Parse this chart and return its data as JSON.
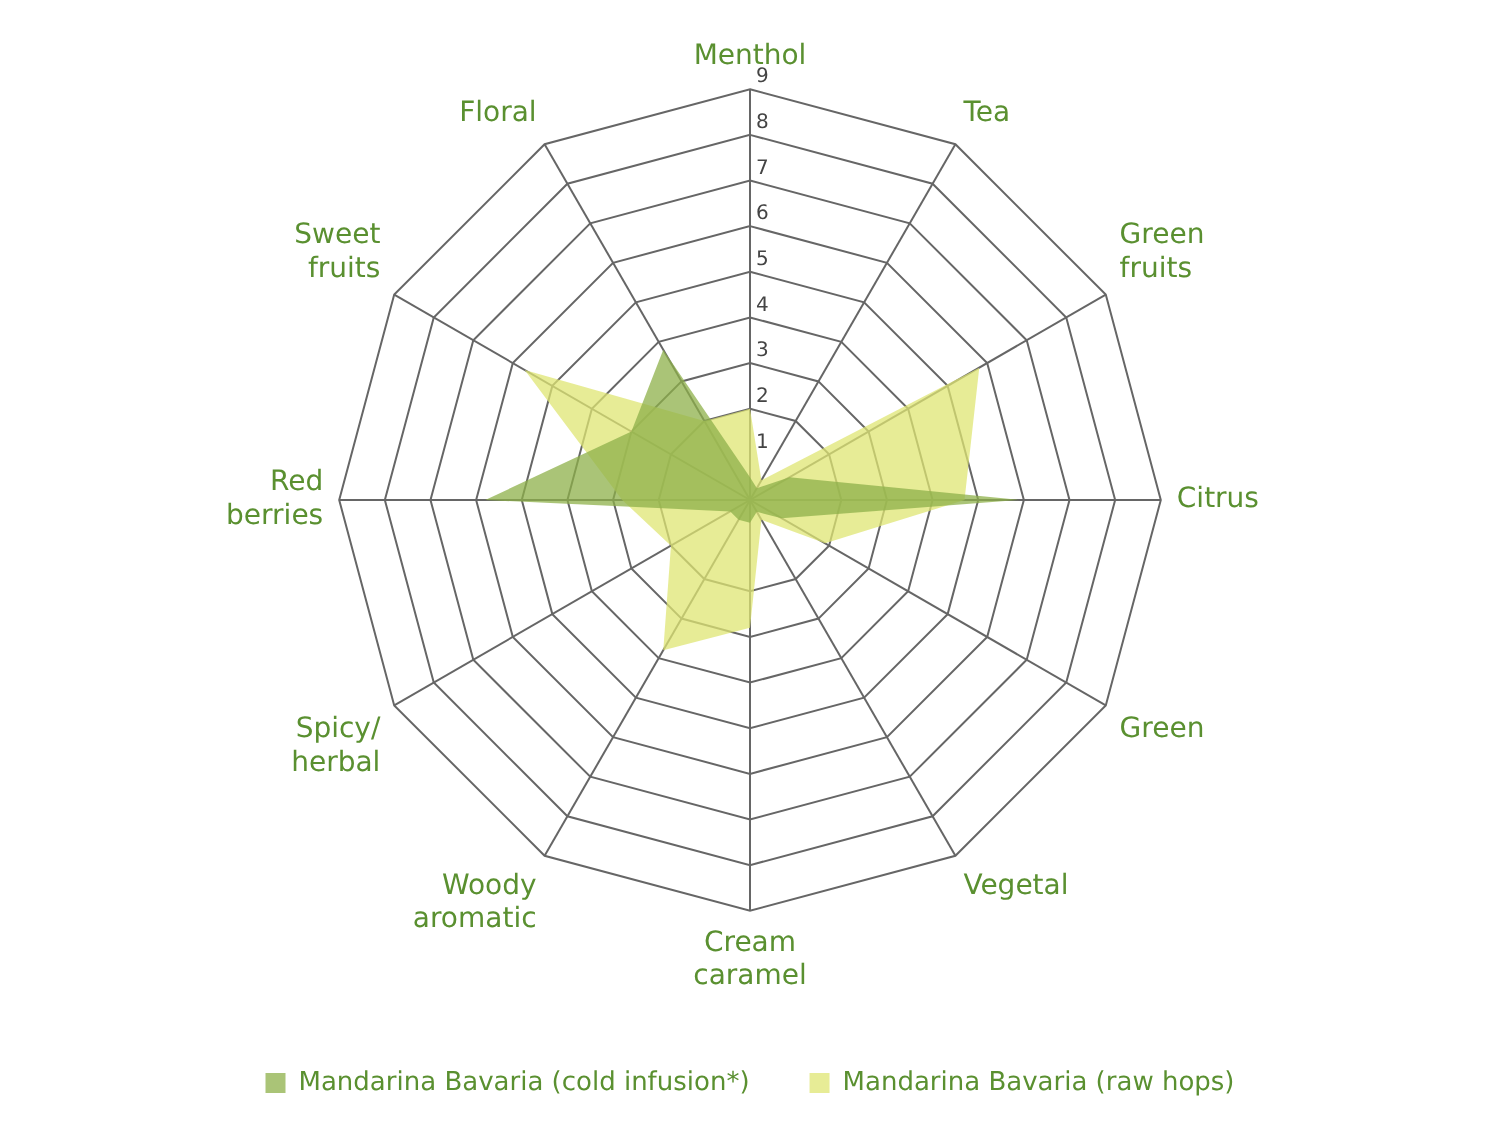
{
  "chart_data": {
    "type": "radar",
    "categories": [
      "Menthol",
      "Tea",
      "Green fruits",
      "Citrus",
      "Green",
      "Vegetal",
      "Cream caramel",
      "Woody aromatic",
      "Spicy/ herbal",
      "Red berries",
      "Sweet fruits",
      "Floral"
    ],
    "series": [
      {
        "name": "Mandarina Bavaria (cold infusion*)",
        "color": "#8db04a",
        "values": [
          0.5,
          0.3,
          1,
          5.9,
          0.8,
          0.3,
          0.5,
          0.5,
          0.5,
          5.8,
          3,
          3.8
        ]
      },
      {
        "name": "Mandarina Bavaria (raw hops)",
        "color": "#dfe673",
        "values": [
          2,
          0.5,
          5.8,
          4.7,
          1.9,
          0.5,
          2.8,
          3.8,
          2,
          2.8,
          5.7,
          2
        ]
      }
    ],
    "ylim": [
      0,
      9
    ],
    "yticks": [
      1,
      2,
      3,
      4,
      5,
      6,
      7,
      8,
      9
    ],
    "legend": "bottom",
    "grid": true
  }
}
